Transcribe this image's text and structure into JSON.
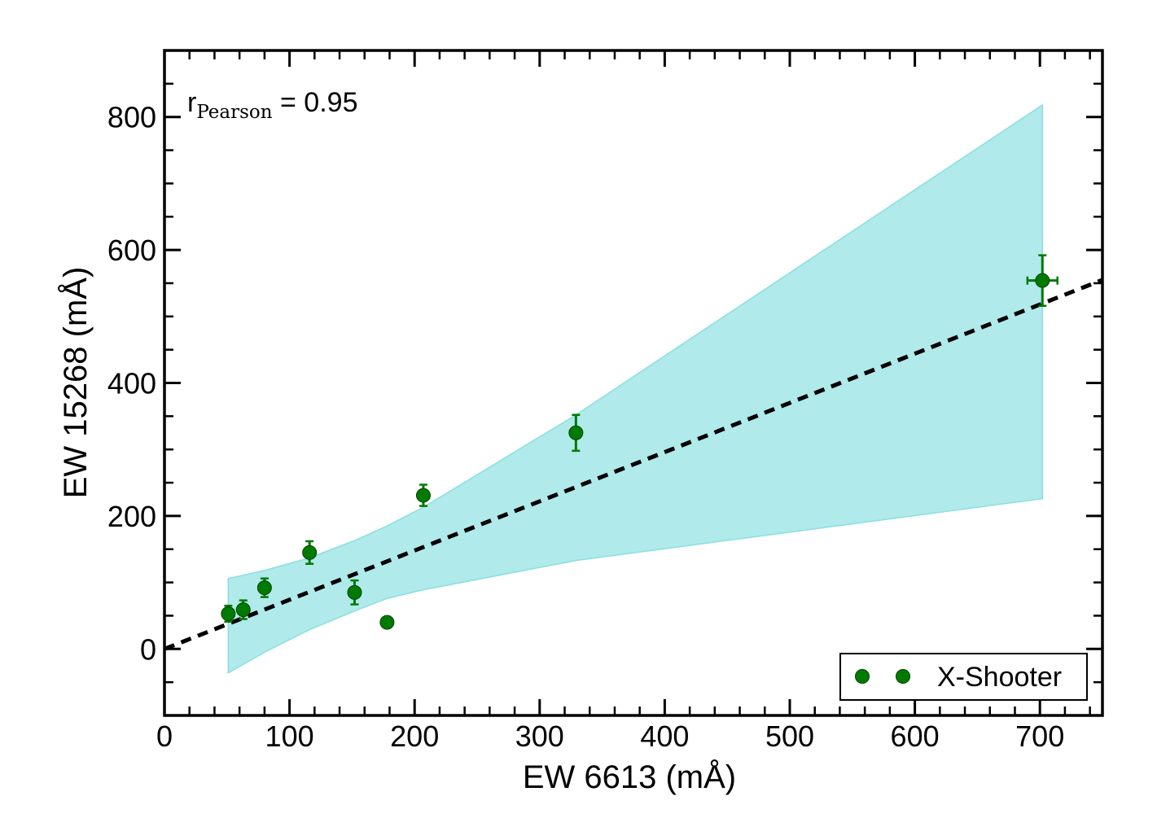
{
  "chart_data": {
    "type": "scatter",
    "xlabel": "EW 6613 (mÅ)",
    "ylabel": "EW 15268 (mÅ)",
    "xlim": [
      0,
      750
    ],
    "ylim": [
      -100,
      900
    ],
    "x_ticks": [
      0,
      100,
      200,
      300,
      400,
      500,
      600,
      700
    ],
    "y_ticks": [
      0,
      200,
      400,
      600,
      800
    ],
    "x_minor_step": 20,
    "y_minor_step": 50,
    "annotation": {
      "prefix": "r",
      "subscript": "Pearson",
      "suffix": " = 0.95"
    },
    "legend": {
      "label": "X-Shooter",
      "position": "lower-right"
    },
    "colors": {
      "points": "#007a00",
      "band": "#b0eaeb",
      "band_edge": "#8adfe0",
      "fit": "#000000"
    },
    "series": [
      {
        "name": "X-Shooter",
        "points": [
          {
            "x": 51,
            "y": 53,
            "yerr": 12,
            "xerr": 0
          },
          {
            "x": 63,
            "y": 59,
            "yerr": 14,
            "xerr": 0
          },
          {
            "x": 80,
            "y": 92,
            "yerr": 14,
            "xerr": 0
          },
          {
            "x": 116,
            "y": 145,
            "yerr": 17,
            "xerr": 0
          },
          {
            "x": 152,
            "y": 85,
            "yerr": 18,
            "xerr": 0
          },
          {
            "x": 178,
            "y": 40,
            "yerr": 7,
            "xerr": 0
          },
          {
            "x": 207,
            "y": 231,
            "yerr": 16,
            "xerr": 0
          },
          {
            "x": 329,
            "y": 325,
            "yerr": 27,
            "xerr": 0
          },
          {
            "x": 702,
            "y": 554,
            "yerr": 38,
            "xerr": 12
          }
        ]
      }
    ],
    "fit_line": {
      "slope": 0.74,
      "intercept": 0,
      "style": "dashed",
      "x_range": [
        0,
        750
      ]
    },
    "confidence_band": {
      "x": [
        51,
        80,
        116,
        152,
        178,
        207,
        329,
        702
      ],
      "upper": [
        106,
        118,
        137,
        163,
        185,
        213,
        352,
        818
      ],
      "lower": [
        -36,
        -5,
        29,
        57,
        76,
        89,
        133,
        226
      ]
    }
  }
}
